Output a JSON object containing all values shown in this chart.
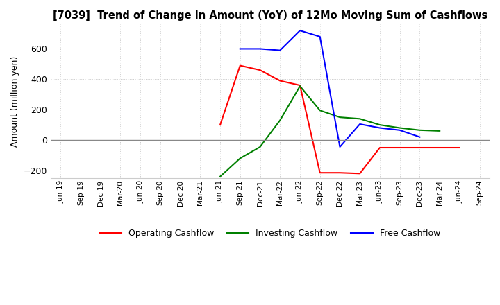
{
  "title": "[7039]  Trend of Change in Amount (YoY) of 12Mo Moving Sum of Cashflows",
  "ylabel": "Amount (million yen)",
  "x_labels": [
    "Jun-19",
    "Sep-19",
    "Dec-19",
    "Mar-20",
    "Jun-20",
    "Sep-20",
    "Dec-20",
    "Mar-21",
    "Jun-21",
    "Sep-21",
    "Dec-21",
    "Mar-22",
    "Jun-22",
    "Sep-22",
    "Dec-22",
    "Mar-23",
    "Jun-23",
    "Sep-23",
    "Dec-23",
    "Mar-24",
    "Jun-24",
    "Sep-24"
  ],
  "operating": [
    null,
    null,
    null,
    null,
    null,
    null,
    null,
    null,
    100,
    490,
    460,
    390,
    360,
    -215,
    -215,
    -220,
    -50,
    -50,
    -50,
    -50,
    -50,
    null
  ],
  "investing": [
    null,
    null,
    null,
    null,
    null,
    null,
    null,
    null,
    -240,
    -120,
    -45,
    130,
    355,
    195,
    150,
    140,
    100,
    80,
    65,
    60,
    null,
    null
  ],
  "free": [
    null,
    null,
    null,
    null,
    null,
    null,
    null,
    null,
    null,
    600,
    600,
    590,
    720,
    680,
    -45,
    105,
    80,
    65,
    20,
    null,
    null,
    null
  ],
  "operating_color": "#ff0000",
  "investing_color": "#008000",
  "free_color": "#0000ff",
  "ylim": [
    -250,
    760
  ],
  "yticks": [
    -200,
    0,
    200,
    400,
    600
  ],
  "background_color": "#ffffff",
  "grid_color": "#cccccc"
}
